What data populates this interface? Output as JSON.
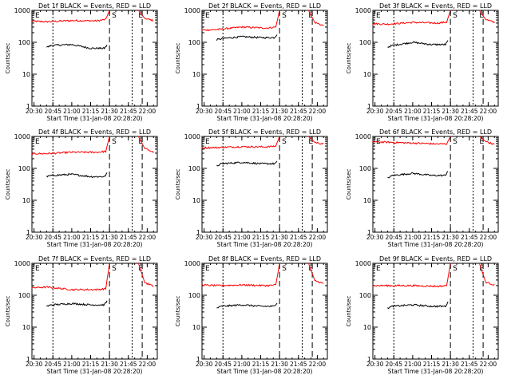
{
  "chart_data": [
    {
      "type": "line",
      "title": "Det 1f BLACK = Events, RED = LLD",
      "xlabel": "Start Time (31-Jan-08 20:28:20)",
      "ylabel": "Counts/sec",
      "xticks": [
        "20:30",
        "20:45",
        "21:00",
        "21:15",
        "21:30",
        "21:45",
        "22:00"
      ],
      "xlim": [
        "20:28:20",
        "22:08"
      ],
      "yscale": "log",
      "ylim": [
        1,
        1000
      ],
      "yticks": [
        "1",
        "10",
        "100",
        "1000"
      ],
      "markers": [
        "E",
        "S",
        "E"
      ],
      "series": [
        {
          "name": "RED",
          "color": "#ff0000",
          "x": [
            "20:28",
            "20:40",
            "21:00",
            "21:20",
            "21:27",
            "21:30",
            "21:31",
            "21:53",
            "21:58",
            "22:05"
          ],
          "y": [
            460,
            440,
            480,
            470,
            520,
            1000,
            null,
            1000,
            560,
            480
          ]
        },
        {
          "name": "BLACK",
          "color": "#000000",
          "x": [
            "20:40",
            "20:44",
            "21:00",
            "21:15",
            "21:26",
            "21:28"
          ],
          "y": [
            70,
            80,
            85,
            65,
            65,
            80
          ]
        }
      ]
    },
    {
      "type": "line",
      "title": "Det 2f BLACK = Events, RED = LLD",
      "xlabel": "Start Time (31-Jan-08 20:28:20)",
      "ylabel": "Counts/sec",
      "xticks": [
        "20:30",
        "20:45",
        "21:00",
        "21:15",
        "21:30",
        "21:45",
        "22:00"
      ],
      "xlim": [
        "20:28:20",
        "22:08"
      ],
      "yscale": "log",
      "ylim": [
        1,
        1000
      ],
      "yticks": [
        "1",
        "10",
        "100",
        "1000"
      ],
      "markers": [
        "E",
        "S",
        "E"
      ],
      "series": [
        {
          "name": "RED",
          "color": "#ff0000",
          "x": [
            "20:28",
            "20:40",
            "21:00",
            "21:20",
            "21:27",
            "21:30",
            "21:31",
            "21:53",
            "21:58",
            "22:05"
          ],
          "y": [
            240,
            250,
            300,
            280,
            300,
            1000,
            null,
            1000,
            420,
            330
          ]
        },
        {
          "name": "BLACK",
          "color": "#000000",
          "x": [
            "20:40",
            "20:44",
            "21:00",
            "21:15",
            "21:26",
            "21:28"
          ],
          "y": [
            120,
            130,
            150,
            140,
            140,
            180
          ]
        }
      ]
    },
    {
      "type": "line",
      "title": "Det 3f BLACK = Events, RED = LLD",
      "xlabel": "Start Time (31-Jan-08 20:28:20)",
      "ylabel": "Counts/sec",
      "xticks": [
        "20:30",
        "20:45",
        "21:00",
        "21:15",
        "21:30",
        "21:45",
        "22:00"
      ],
      "xlim": [
        "20:28:20",
        "22:08"
      ],
      "yscale": "log",
      "ylim": [
        1,
        1000
      ],
      "yticks": [
        "1",
        "10",
        "100",
        "1000"
      ],
      "markers": [
        "E",
        "S",
        "E"
      ],
      "series": [
        {
          "name": "RED",
          "color": "#ff0000",
          "x": [
            "20:28",
            "20:40",
            "21:00",
            "21:20",
            "21:27",
            "21:30",
            "21:31",
            "21:53",
            "21:58",
            "22:05"
          ],
          "y": [
            380,
            370,
            420,
            400,
            430,
            1000,
            null,
            1000,
            520,
            420
          ]
        },
        {
          "name": "BLACK",
          "color": "#000000",
          "x": [
            "20:40",
            "20:44",
            "21:00",
            "21:15",
            "21:26",
            "21:28"
          ],
          "y": [
            70,
            80,
            100,
            85,
            85,
            110
          ]
        }
      ]
    },
    {
      "type": "line",
      "title": "Det 4f BLACK = Events, RED = LLD",
      "xlabel": "Start Time (31-Jan-08 20:28:20)",
      "ylabel": "Counts/sec",
      "xticks": [
        "20:30",
        "20:45",
        "21:00",
        "21:15",
        "21:30",
        "21:45",
        "22:00"
      ],
      "xlim": [
        "20:28:20",
        "22:08"
      ],
      "yscale": "log",
      "ylim": [
        1,
        1000
      ],
      "yticks": [
        "1",
        "10",
        "100",
        "1000"
      ],
      "markers": [
        "E",
        "S",
        "E"
      ],
      "series": [
        {
          "name": "RED",
          "color": "#ff0000",
          "x": [
            "20:28",
            "20:40",
            "21:00",
            "21:20",
            "21:27",
            "21:30",
            "21:31",
            "21:53",
            "21:58",
            "22:05"
          ],
          "y": [
            290,
            290,
            320,
            320,
            340,
            1000,
            null,
            1000,
            420,
            320
          ]
        },
        {
          "name": "BLACK",
          "color": "#000000",
          "x": [
            "20:40",
            "20:44",
            "21:00",
            "21:15",
            "21:26",
            "21:28"
          ],
          "y": [
            55,
            60,
            65,
            55,
            55,
            70
          ]
        }
      ]
    },
    {
      "type": "line",
      "title": "Det 5f BLACK = Events, RED = LLD",
      "xlabel": "Start Time (31-Jan-08 20:28:20)",
      "ylabel": "Counts/sec",
      "xticks": [
        "20:30",
        "20:45",
        "21:00",
        "21:15",
        "21:30",
        "21:45",
        "22:00"
      ],
      "xlim": [
        "20:28:20",
        "22:08"
      ],
      "yscale": "log",
      "ylim": [
        1,
        1000
      ],
      "yticks": [
        "1",
        "10",
        "100",
        "1000"
      ],
      "markers": [
        "E",
        "S",
        "E"
      ],
      "series": [
        {
          "name": "RED",
          "color": "#ff0000",
          "x": [
            "20:28",
            "20:40",
            "21:00",
            "21:20",
            "21:27",
            "21:30",
            "21:31",
            "21:53",
            "21:58",
            "22:05"
          ],
          "y": [
            440,
            450,
            480,
            470,
            500,
            1000,
            null,
            1000,
            650,
            580
          ]
        },
        {
          "name": "BLACK",
          "color": "#000000",
          "x": [
            "20:40",
            "20:44",
            "21:00",
            "21:15",
            "21:26",
            "21:28"
          ],
          "y": [
            120,
            140,
            155,
            140,
            140,
            160
          ]
        }
      ]
    },
    {
      "type": "line",
      "title": "Det 6f BLACK = Events, RED = LLD",
      "xlabel": "Start Time (31-Jan-08 20:28:20)",
      "ylabel": "Counts/sec",
      "xticks": [
        "20:30",
        "20:45",
        "21:00",
        "21:15",
        "21:30",
        "21:45",
        "22:00"
      ],
      "xlim": [
        "20:28:20",
        "22:08"
      ],
      "yscale": "log",
      "ylim": [
        1,
        1000
      ],
      "yticks": [
        "1",
        "10",
        "100",
        "1000"
      ],
      "markers": [
        "E",
        "S",
        "E"
      ],
      "series": [
        {
          "name": "RED",
          "color": "#ff0000",
          "x": [
            "20:28",
            "20:40",
            "21:00",
            "21:20",
            "21:27",
            "21:30",
            "21:31",
            "21:53",
            "21:58",
            "22:05"
          ],
          "y": [
            680,
            660,
            620,
            580,
            590,
            1000,
            null,
            1000,
            700,
            560
          ]
        },
        {
          "name": "BLACK",
          "color": "#000000",
          "x": [
            "20:40",
            "20:44",
            "21:00",
            "21:15",
            "21:26",
            "21:28"
          ],
          "y": [
            50,
            60,
            70,
            60,
            60,
            85
          ]
        }
      ]
    },
    {
      "type": "line",
      "title": "Det 7f BLACK = Events, RED = LLD",
      "xlabel": "Start Time (31-Jan-08 20:28:20)",
      "ylabel": "Counts/sec",
      "xticks": [
        "20:30",
        "20:45",
        "21:00",
        "21:15",
        "21:30",
        "21:45",
        "22:00"
      ],
      "xlim": [
        "20:28:20",
        "22:08"
      ],
      "yscale": "log",
      "ylim": [
        1,
        1000
      ],
      "yticks": [
        "1",
        "10",
        "100",
        "1000"
      ],
      "markers": [
        "E",
        "S",
        "E"
      ],
      "series": [
        {
          "name": "RED",
          "color": "#ff0000",
          "x": [
            "20:28",
            "20:40",
            "21:00",
            "21:20",
            "21:27",
            "21:30",
            "21:31",
            "21:53",
            "21:58",
            "22:05"
          ],
          "y": [
            170,
            180,
            150,
            150,
            160,
            1000,
            null,
            1000,
            250,
            190
          ]
        },
        {
          "name": "BLACK",
          "color": "#000000",
          "x": [
            "20:40",
            "20:44",
            "21:00",
            "21:15",
            "21:26",
            "21:28"
          ],
          "y": [
            45,
            50,
            55,
            50,
            50,
            65
          ]
        }
      ]
    },
    {
      "type": "line",
      "title": "Det 8f BLACK = Events, RED = LLD",
      "xlabel": "Start Time (31-Jan-08 20:28:20)",
      "ylabel": "Counts/sec",
      "xticks": [
        "20:30",
        "20:45",
        "21:00",
        "21:15",
        "21:30",
        "21:45",
        "22:00"
      ],
      "xlim": [
        "20:28:20",
        "22:08"
      ],
      "yscale": "log",
      "ylim": [
        1,
        1000
      ],
      "yticks": [
        "1",
        "10",
        "100",
        "1000"
      ],
      "markers": [
        "E",
        "S",
        "E"
      ],
      "series": [
        {
          "name": "RED",
          "color": "#ff0000",
          "x": [
            "20:28",
            "20:40",
            "21:00",
            "21:20",
            "21:27",
            "21:30",
            "21:31",
            "21:53",
            "21:58",
            "22:05"
          ],
          "y": [
            210,
            200,
            210,
            200,
            210,
            1000,
            null,
            1000,
            290,
            230
          ]
        },
        {
          "name": "BLACK",
          "color": "#000000",
          "x": [
            "20:40",
            "20:44",
            "21:00",
            "21:15",
            "21:26",
            "21:28"
          ],
          "y": [
            40,
            45,
            50,
            45,
            45,
            60
          ]
        }
      ]
    },
    {
      "type": "line",
      "title": "Det 9f BLACK = Events, RED = LLD",
      "xlabel": "Start Time (31-Jan-08 20:28:20)",
      "ylabel": "Counts/sec",
      "xticks": [
        "20:30",
        "20:45",
        "21:00",
        "21:15",
        "21:30",
        "21:45",
        "22:00"
      ],
      "xlim": [
        "20:28:20",
        "22:08"
      ],
      "yscale": "log",
      "ylim": [
        1,
        1000
      ],
      "yticks": [
        "1",
        "10",
        "100",
        "1000"
      ],
      "markers": [
        "E",
        "S",
        "E"
      ],
      "series": [
        {
          "name": "RED",
          "color": "#ff0000",
          "x": [
            "20:28",
            "20:40",
            "21:00",
            "21:20",
            "21:27",
            "21:30",
            "21:31",
            "21:53",
            "21:58",
            "22:05"
          ],
          "y": [
            200,
            200,
            200,
            190,
            200,
            1000,
            null,
            1000,
            260,
            210
          ]
        },
        {
          "name": "BLACK",
          "color": "#000000",
          "x": [
            "20:40",
            "20:44",
            "21:00",
            "21:15",
            "21:26",
            "21:28"
          ],
          "y": [
            40,
            45,
            50,
            45,
            45,
            60
          ]
        }
      ]
    }
  ]
}
